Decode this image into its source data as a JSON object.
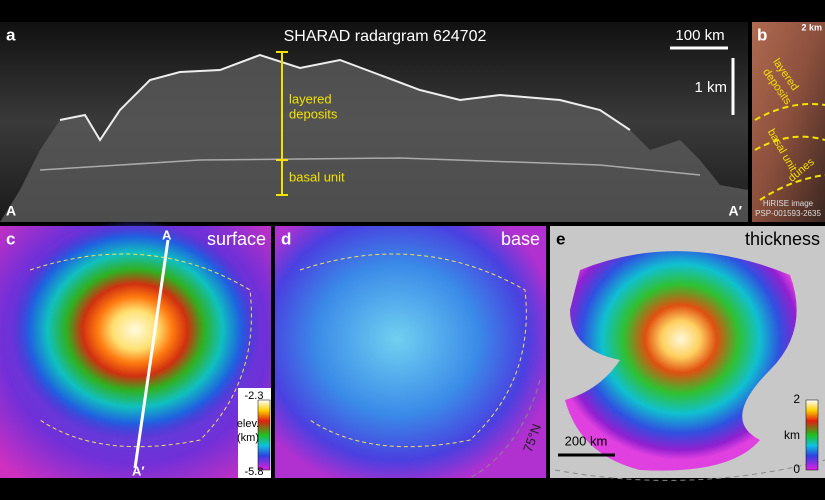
{
  "panels": [
    {
      "letter": "a",
      "title": "SHARAD radargram 624702",
      "scale_horizontal": "100 km",
      "scale_vertical": "1 km",
      "annotations": [
        "layered",
        "deposits",
        "basal unit"
      ],
      "profile_start": "A",
      "profile_end": "A′"
    },
    {
      "letter": "b",
      "scale": "2 km",
      "annotations": [
        "layered",
        "deposits",
        "basal unit",
        "dunes"
      ],
      "credit": [
        "HiRISE image",
        "PSP-001593-2635"
      ]
    },
    {
      "letter": "c",
      "title": "surface",
      "profile_start": "A",
      "profile_end": "A′",
      "colorbar": {
        "max": "-2.3",
        "label": [
          "elev.",
          "(km)"
        ],
        "min": "-5.8"
      }
    },
    {
      "letter": "d",
      "title": "base",
      "latitude": "75°N"
    },
    {
      "letter": "e",
      "title": "thickness",
      "scale": "200 km",
      "colorbar": {
        "label": "km",
        "max": "2",
        "min": "0"
      }
    }
  ]
}
